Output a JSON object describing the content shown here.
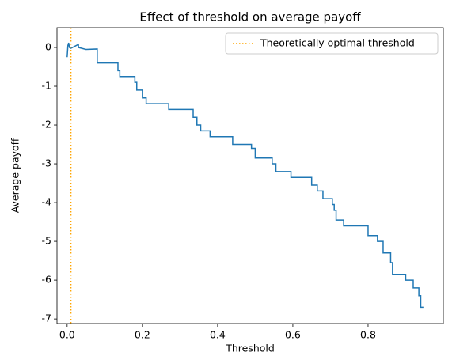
{
  "chart_data": {
    "type": "line",
    "title": "Effect of threshold on average payoff",
    "xlabel": "Threshold",
    "ylabel": "Average payoff",
    "xlim": [
      -0.027,
      1.0
    ],
    "ylim": [
      -7.12,
      0.51
    ],
    "xticks": [
      {
        "value": 0,
        "label": "0.0"
      },
      0.2,
      0.4,
      0.6,
      0.8
    ],
    "yticks": [
      -7,
      -6,
      -5,
      -4,
      -3,
      -2,
      -1,
      0
    ],
    "legend": "upper right",
    "series": [
      {
        "color": "#1f77b4",
        "x": [
          0,
          0.002,
          0.004,
          0.006,
          0.01,
          0.02,
          0.03,
          0.03,
          0.05,
          0.08,
          0.08,
          0.135,
          0.135,
          0.14,
          0.14,
          0.18,
          0.18,
          0.185,
          0.185,
          0.2,
          0.2,
          0.21,
          0.21,
          0.27,
          0.27,
          0.335,
          0.335,
          0.345,
          0.345,
          0.355,
          0.355,
          0.38,
          0.38,
          0.44,
          0.44,
          0.49,
          0.49,
          0.5,
          0.5,
          0.545,
          0.545,
          0.555,
          0.555,
          0.595,
          0.595,
          0.65,
          0.65,
          0.665,
          0.665,
          0.68,
          0.68,
          0.705,
          0.705,
          0.71,
          0.71,
          0.715,
          0.715,
          0.735,
          0.735,
          0.8,
          0.8,
          0.825,
          0.825,
          0.84,
          0.84,
          0.86,
          0.86,
          0.865,
          0.865,
          0.9,
          0.9,
          0.92,
          0.92,
          0.935,
          0.935,
          0.94,
          0.94,
          0.947
        ],
        "values": [
          -0.25,
          0.05,
          0.12,
          0.0,
          -0.02,
          0.03,
          0.08,
          0.0,
          -0.05,
          -0.04,
          -0.4,
          -0.4,
          -0.6,
          -0.6,
          -0.75,
          -0.75,
          -0.9,
          -0.9,
          -1.1,
          -1.1,
          -1.3,
          -1.3,
          -1.45,
          -1.45,
          -1.6,
          -1.6,
          -1.8,
          -1.8,
          -2.0,
          -2.0,
          -2.15,
          -2.15,
          -2.3,
          -2.3,
          -2.5,
          -2.5,
          -2.6,
          -2.6,
          -2.85,
          -2.85,
          -3.0,
          -3.0,
          -3.2,
          -3.2,
          -3.35,
          -3.35,
          -3.55,
          -3.55,
          -3.7,
          -3.7,
          -3.9,
          -3.9,
          -4.05,
          -4.05,
          -4.2,
          -4.2,
          -4.45,
          -4.45,
          -4.6,
          -4.6,
          -4.85,
          -4.85,
          -5.0,
          -5.0,
          -5.3,
          -5.3,
          -5.55,
          -5.55,
          -5.85,
          -5.85,
          -6.0,
          -6.0,
          -6.2,
          -6.2,
          -6.4,
          -6.4,
          -6.7,
          -6.7
        ]
      }
    ],
    "vlines": [
      {
        "name": "Theoretically optimal threshold",
        "x": 0.01,
        "color": "orange"
      }
    ]
  }
}
